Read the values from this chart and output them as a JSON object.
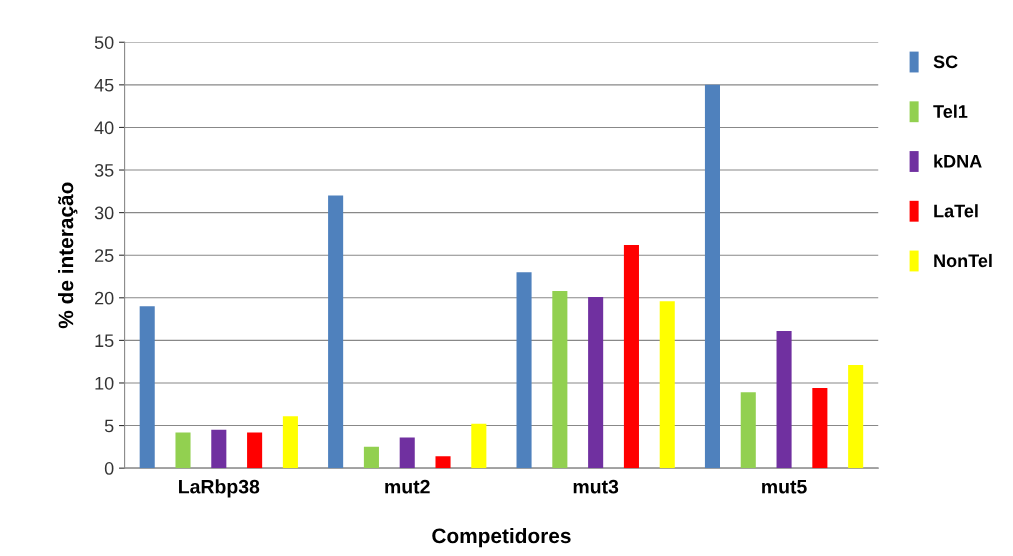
{
  "chart_data": {
    "type": "bar",
    "xlabel": "Competidores",
    "ylabel": "% de interação",
    "categories": [
      "LaRbp38",
      "mut2",
      "mut3",
      "mut5"
    ],
    "series": [
      {
        "name": "SC",
        "color": "#4f81bd",
        "values": [
          19,
          32,
          23,
          45
        ]
      },
      {
        "name": "Tel1",
        "color": "#92d050",
        "values": [
          4.2,
          2.5,
          20.8,
          8.9
        ]
      },
      {
        "name": "kDNA",
        "color": "#7030a0",
        "values": [
          4.5,
          3.6,
          20.1,
          16.1
        ]
      },
      {
        "name": "LaTel",
        "color": "#ff0000",
        "values": [
          4.2,
          1.4,
          26.2,
          9.4
        ]
      },
      {
        "name": "NonTel",
        "color": "#ffff00",
        "values": [
          6.1,
          5.2,
          19.6,
          12.1
        ]
      }
    ],
    "ylim": [
      0,
      50
    ],
    "yticks": [
      0,
      5,
      10,
      15,
      20,
      25,
      30,
      35,
      40,
      45,
      50
    ],
    "grid": "y",
    "legend": "right"
  }
}
